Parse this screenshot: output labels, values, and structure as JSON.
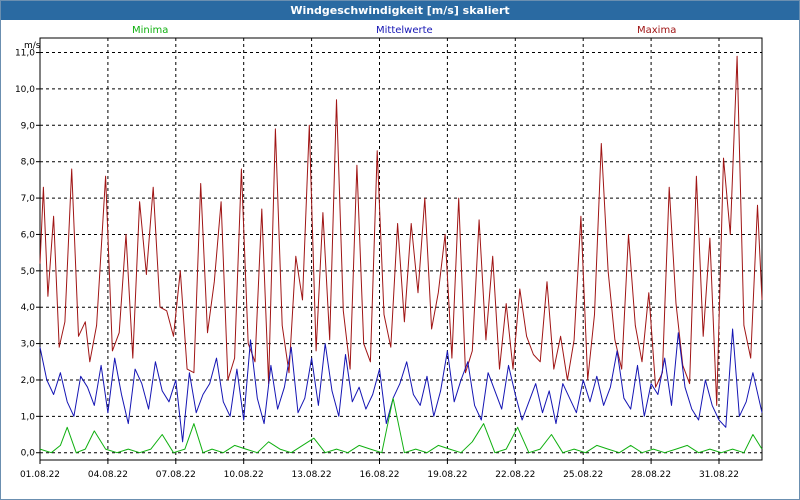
{
  "window": {
    "title": "Windgeschwindigkeit [m/s] skaliert"
  },
  "legend": {
    "min": "Minima",
    "mean": "Mittelwerte",
    "max": "Maxima"
  },
  "colors": {
    "min": "#10b010",
    "mean": "#1515b4",
    "max": "#a01515",
    "title_bar": "#2a6aa2"
  },
  "chart_data": {
    "type": "line",
    "title": "Windgeschwindigkeit [m/s] skaliert",
    "ylabel": "m/s",
    "ylim": [
      -0.2,
      11.4
    ],
    "y_ticks": [
      "0,0",
      "1,0",
      "2,0",
      "3,0",
      "4,0",
      "5,0",
      "6,0",
      "7,0",
      "8,0",
      "9,0",
      "10,0",
      "11,0"
    ],
    "y_tick_values": [
      0,
      1,
      2,
      3,
      4,
      5,
      6,
      7,
      8,
      9,
      10,
      11
    ],
    "x_range_days": [
      0,
      31.9
    ],
    "x_ticks": [
      "01.08.22",
      "04.08.22",
      "07.08.22",
      "10.08.22",
      "13.08.22",
      "16.08.22",
      "19.08.22",
      "22.08.22",
      "25.08.22",
      "28.08.22",
      "31.08.22"
    ],
    "x_tick_values": [
      0,
      3,
      6,
      9,
      12,
      15,
      18,
      21,
      24,
      27,
      30
    ],
    "grid": true,
    "series": [
      {
        "name": "Maxima",
        "x": [
          0,
          0.15,
          0.35,
          0.6,
          0.85,
          1.1,
          1.4,
          1.7,
          2.0,
          2.2,
          2.5,
          2.9,
          3.2,
          3.5,
          3.8,
          4.1,
          4.4,
          4.7,
          5.0,
          5.3,
          5.6,
          5.9,
          6.2,
          6.5,
          6.8,
          7.1,
          7.4,
          7.7,
          8.0,
          8.3,
          8.6,
          8.9,
          9.2,
          9.5,
          9.8,
          10.1,
          10.4,
          10.7,
          11.0,
          11.3,
          11.6,
          11.9,
          12.2,
          12.5,
          12.8,
          13.1,
          13.4,
          13.7,
          14.0,
          14.3,
          14.6,
          14.9,
          15.2,
          15.5,
          15.8,
          16.1,
          16.4,
          16.7,
          17.0,
          17.3,
          17.6,
          17.9,
          18.2,
          18.5,
          18.8,
          19.1,
          19.4,
          19.7,
          20.0,
          20.3,
          20.6,
          20.9,
          21.2,
          21.5,
          21.8,
          22.1,
          22.4,
          22.7,
          23.0,
          23.3,
          23.6,
          23.9,
          24.2,
          24.5,
          24.8,
          25.1,
          25.4,
          25.7,
          26.0,
          26.3,
          26.6,
          26.9,
          27.2,
          27.5,
          27.8,
          28.1,
          28.4,
          28.7,
          29.0,
          29.3,
          29.6,
          29.9,
          30.2,
          30.5,
          30.8,
          31.1,
          31.4,
          31.7,
          31.9
        ],
        "values": [
          5.2,
          7.3,
          4.3,
          6.5,
          2.9,
          3.6,
          7.8,
          3.2,
          3.6,
          2.5,
          3.5,
          7.6,
          2.8,
          3.3,
          6.0,
          2.6,
          6.9,
          4.9,
          7.3,
          4.0,
          3.9,
          3.2,
          5.0,
          2.3,
          2.2,
          7.4,
          3.3,
          4.7,
          6.9,
          2.0,
          2.6,
          7.8,
          3.0,
          2.5,
          6.7,
          1.9,
          8.9,
          3.5,
          2.2,
          5.4,
          4.2,
          9.0,
          2.8,
          6.6,
          3.1,
          9.7,
          3.9,
          2.3,
          7.9,
          3.0,
          2.5,
          8.3,
          3.8,
          2.9,
          6.3,
          3.6,
          6.3,
          4.4,
          7.0,
          3.4,
          4.4,
          6.0,
          2.6,
          7.0,
          2.2,
          2.8,
          6.4,
          3.1,
          5.4,
          2.3,
          4.1,
          2.3,
          4.5,
          3.2,
          2.7,
          2.5,
          4.7,
          2.3,
          3.2,
          2.0,
          3.1,
          6.5,
          2.0,
          3.8,
          8.5,
          5.0,
          3.1,
          2.3,
          6.0,
          3.5,
          2.5,
          4.4,
          1.8,
          2.2,
          7.3,
          4.1,
          2.4,
          1.9,
          7.6,
          3.2,
          5.9,
          1.3,
          8.1,
          6.0,
          10.9,
          3.5,
          2.6,
          6.8,
          4.2
        ]
      },
      {
        "name": "Mittelwerte",
        "x": [
          0,
          0.3,
          0.6,
          0.9,
          1.2,
          1.5,
          1.8,
          2.1,
          2.4,
          2.7,
          3.0,
          3.3,
          3.6,
          3.9,
          4.2,
          4.5,
          4.8,
          5.1,
          5.4,
          5.7,
          6.0,
          6.3,
          6.6,
          6.9,
          7.2,
          7.5,
          7.8,
          8.1,
          8.4,
          8.7,
          9.0,
          9.3,
          9.6,
          9.9,
          10.2,
          10.5,
          10.8,
          11.1,
          11.4,
          11.7,
          12.0,
          12.3,
          12.6,
          12.9,
          13.2,
          13.5,
          13.8,
          14.1,
          14.4,
          14.7,
          15.0,
          15.3,
          15.6,
          15.9,
          16.2,
          16.5,
          16.8,
          17.1,
          17.4,
          17.7,
          18.0,
          18.3,
          18.6,
          18.9,
          19.2,
          19.5,
          19.8,
          20.1,
          20.4,
          20.7,
          21.0,
          21.3,
          21.6,
          21.9,
          22.2,
          22.5,
          22.8,
          23.1,
          23.4,
          23.7,
          24.0,
          24.3,
          24.6,
          24.9,
          25.2,
          25.5,
          25.8,
          26.1,
          26.4,
          26.7,
          27.0,
          27.3,
          27.6,
          27.9,
          28.2,
          28.5,
          28.8,
          29.1,
          29.4,
          29.7,
          30.0,
          30.3,
          30.6,
          30.9,
          31.2,
          31.5,
          31.9
        ],
        "values": [
          2.9,
          2.0,
          1.6,
          2.2,
          1.4,
          1.0,
          2.1,
          1.8,
          1.3,
          2.4,
          1.1,
          2.6,
          1.6,
          0.8,
          2.3,
          1.9,
          1.2,
          2.5,
          1.7,
          1.4,
          2.0,
          0.3,
          2.2,
          1.1,
          1.6,
          1.9,
          2.6,
          1.4,
          1.0,
          2.3,
          0.9,
          3.1,
          1.5,
          0.8,
          2.4,
          1.2,
          1.8,
          2.9,
          1.1,
          1.5,
          2.6,
          1.3,
          3.0,
          1.7,
          1.0,
          2.7,
          1.4,
          1.8,
          1.2,
          1.6,
          2.3,
          0.8,
          1.5,
          1.9,
          2.5,
          1.6,
          1.3,
          2.1,
          1.0,
          1.7,
          2.8,
          1.4,
          2.0,
          2.5,
          1.3,
          0.9,
          2.2,
          1.7,
          1.2,
          2.4,
          1.6,
          0.9,
          1.4,
          1.9,
          1.1,
          1.7,
          0.8,
          1.9,
          1.5,
          1.1,
          2.0,
          1.4,
          2.1,
          1.3,
          1.8,
          2.8,
          1.5,
          1.2,
          2.4,
          1.0,
          1.9,
          1.6,
          2.6,
          1.3,
          3.3,
          1.8,
          1.2,
          0.9,
          2.0,
          1.3,
          0.9,
          0.7,
          3.4,
          1.0,
          1.4,
          2.2,
          1.1
        ]
      },
      {
        "name": "Minima",
        "x": [
          0,
          0.5,
          0.9,
          1.2,
          1.6,
          2.0,
          2.4,
          2.9,
          3.4,
          3.9,
          4.4,
          4.9,
          5.4,
          5.9,
          6.4,
          6.8,
          7.2,
          7.6,
          8.1,
          8.6,
          9.1,
          9.6,
          10.1,
          10.6,
          11.1,
          11.6,
          12.1,
          12.6,
          13.1,
          13.6,
          14.1,
          14.6,
          15.1,
          15.6,
          16.1,
          16.6,
          17.1,
          17.6,
          18.1,
          18.6,
          19.1,
          19.6,
          20.1,
          20.6,
          21.1,
          21.6,
          22.1,
          22.6,
          23.1,
          23.6,
          24.1,
          24.6,
          25.1,
          25.6,
          26.1,
          26.6,
          27.1,
          27.6,
          28.1,
          28.6,
          29.1,
          29.6,
          30.1,
          30.6,
          31.1,
          31.5,
          31.9
        ],
        "values": [
          0.1,
          0.0,
          0.2,
          0.7,
          0.0,
          0.1,
          0.6,
          0.1,
          0.0,
          0.1,
          0.0,
          0.1,
          0.5,
          0.0,
          0.1,
          0.8,
          0.0,
          0.1,
          0.0,
          0.2,
          0.1,
          0.0,
          0.3,
          0.1,
          0.0,
          0.2,
          0.4,
          0.0,
          0.1,
          0.0,
          0.2,
          0.1,
          0.0,
          1.5,
          0.0,
          0.1,
          0.0,
          0.2,
          0.1,
          0.0,
          0.3,
          0.8,
          0.0,
          0.1,
          0.7,
          0.0,
          0.1,
          0.5,
          0.0,
          0.1,
          0.0,
          0.2,
          0.1,
          0.0,
          0.2,
          0.0,
          0.1,
          0.0,
          0.1,
          0.2,
          0.0,
          0.1,
          0.0,
          0.1,
          0.0,
          0.5,
          0.1
        ]
      }
    ]
  }
}
